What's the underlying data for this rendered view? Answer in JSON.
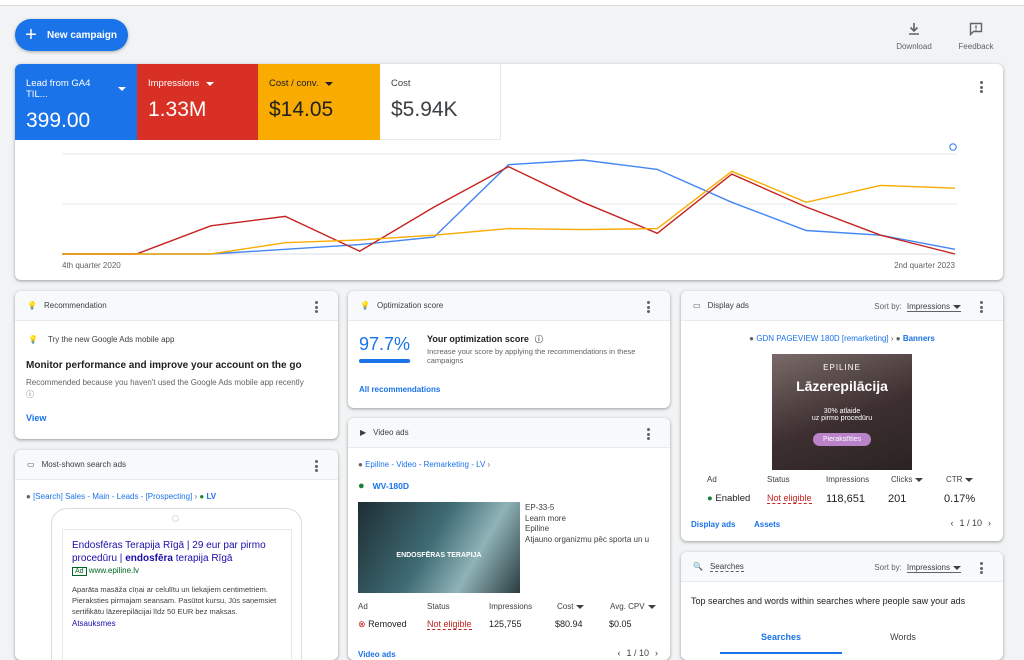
{
  "toolbar": {
    "new_campaign": "New campaign",
    "download": "Download",
    "feedback": "Feedback"
  },
  "metrics": [
    {
      "label": "Lead from GA4 TIL...",
      "value": "399.00",
      "color": "#1a73e8"
    },
    {
      "label": "Impressions",
      "value": "1.33M",
      "color": "#d93025"
    },
    {
      "label": "Cost / conv.",
      "value": "$14.05",
      "color": "#f9ab00"
    },
    {
      "label": "Cost",
      "value": "$5.94K",
      "color": "#ffffff"
    }
  ],
  "chart_data": {
    "type": "line",
    "xlabels": [
      "4th quarter 2020",
      "2nd quarter 2023"
    ],
    "series": [
      {
        "name": "Lead from GA4 TIL...",
        "color": "#4285f4",
        "values": [
          0,
          0,
          0,
          0.05,
          0.1,
          0.18,
          0.95,
          1.0,
          0.9,
          0.55,
          0.25,
          0.2,
          0.05
        ]
      },
      {
        "name": "Impressions",
        "color": "#c5221f",
        "values": [
          0,
          0,
          0.3,
          0.4,
          0.03,
          0.5,
          0.93,
          0.55,
          0.22,
          0.85,
          0.5,
          0.2,
          0.0
        ]
      },
      {
        "name": "Cost / conv.",
        "color": "#f9ab00",
        "values": [
          0,
          0,
          0,
          0.12,
          0.15,
          0.2,
          0.27,
          0.26,
          0.27,
          0.88,
          0.55,
          0.73,
          0.7
        ]
      }
    ]
  },
  "recommendation": {
    "title": "Recommendation",
    "tip": "Try the new Google Ads mobile app",
    "heading": "Monitor performance and improve your account on the go",
    "reason": "Recommended because you haven't used the Google Ads mobile app recently",
    "view": "View"
  },
  "optimization": {
    "title": "Optimization score",
    "score": "97.7%",
    "heading": "Your optimization score",
    "desc": "Increase your score by applying the recommendations in these campaigns",
    "all": "All recommendations",
    "fill": 0.977
  },
  "display_ads": {
    "title": "Display ads",
    "sort_label": "Sort by:",
    "sort_value": "Impressions",
    "campaign": "GDN PAGEVIEW 180D [remarketing]",
    "adgroup": "Banners",
    "ad_brand": "EPILINE",
    "ad_title": "Lāzerepilācija",
    "ad_sub1": "30% atlaide",
    "ad_sub2": "uz pirmo procedūru",
    "ad_cta": "Pierakstīties",
    "headers": [
      "Ad",
      "Status",
      "Impressions",
      "Clicks",
      "CTR"
    ],
    "row": [
      "Enabled",
      "Not eligible",
      "118,651",
      "201",
      "0.17%"
    ],
    "link1": "Display ads",
    "link2": "Assets",
    "pager": "1 / 10"
  },
  "video_ads": {
    "title": "Video ads",
    "campaign": "Epiline - Video - Remarketing - LV",
    "adgroup": "WV-180D",
    "thumb_text": "ENDOSFĒRAS TERAPIJA",
    "lines": [
      "EP-33-5",
      "Learn more",
      "Epiline",
      "Atjauno organizmu pēc sporta un u"
    ],
    "headers": [
      "Ad",
      "Status",
      "Impressions",
      "Cost",
      "Avg. CPV"
    ],
    "row": [
      "Removed",
      "Not eligible",
      "125,755",
      "$80.94",
      "$0.05"
    ],
    "link": "Video ads",
    "pager": "1 / 10"
  },
  "search_ads": {
    "title": "Most-shown search ads",
    "path": "[Search] Sales - Main - Leads - [Prospecting]",
    "region": "LV",
    "headline1": "Endosfēras Terapija Rīgā | 29 eur par pirmo",
    "headline2a": "procedūru | ",
    "headline2b": "endosfēra",
    "headline2c": " terapija Rīgā",
    "badge": "Ad",
    "url": "www.epiline.lv",
    "desc": "Aparāta masāža cīņai ar celulītu un liekajiem centimetriem. Pieraksties pirmajam seansam. Pasūtot kursu, Jūs saņemsiet sertifikātu lāzerepilācijai līdz 50 EUR bez maksas.",
    "sitelink": "Atsauksmes"
  },
  "searches": {
    "title": "Searches",
    "sort_label": "Sort by:",
    "sort_value": "Impressions",
    "desc": "Top searches and words within searches where people saw your ads",
    "tab1": "Searches",
    "tab2": "Words"
  }
}
